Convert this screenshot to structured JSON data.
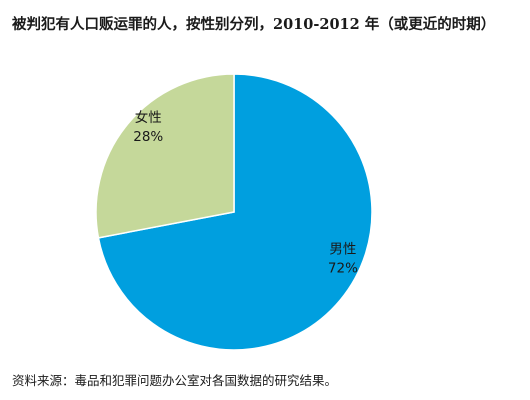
{
  "chart_data": {
    "type": "pie",
    "title": "被判犯有人口贩运罪的人，按性别分列，2010-2012 年（或更近的时期）",
    "source": "资料来源：毒品和犯罪问题办公室对各国数据的研究结果。",
    "slices": [
      {
        "label": "男性",
        "value": 72,
        "display": "72%",
        "color": "#009fdf"
      },
      {
        "label": "女性",
        "value": 28,
        "display": "28%",
        "color": "#c5d89a"
      }
    ],
    "start_angle_deg": 0,
    "direction": "clockwise",
    "legend": "none"
  }
}
